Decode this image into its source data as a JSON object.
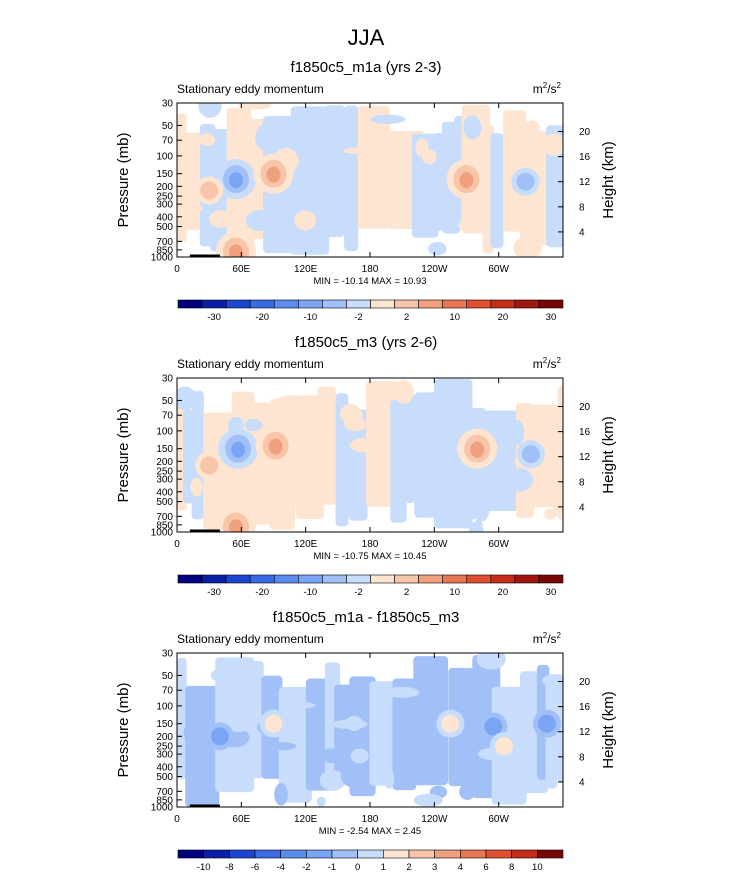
{
  "page_title": "JJA",
  "chart_data": [
    {
      "type": "heatmap",
      "title": "f1850c5_m1a (yrs 2-3)",
      "subtitle": "Stationary eddy momentum",
      "units_prefix": "m",
      "units_suffix": "/s",
      "units_exp": "2",
      "ylabel": "Pressure (mb)",
      "ylabel_right": "Height (km)",
      "pressure_ticks": [
        "30",
        "50",
        "70",
        "100",
        "150",
        "200",
        "250",
        "300",
        "400",
        "500",
        "700",
        "850",
        "1000"
      ],
      "height_ticks": [
        "20",
        "16",
        "12",
        "8",
        "4"
      ],
      "xticks": [
        "0",
        "60E",
        "120E",
        "180",
        "120W",
        "60W"
      ],
      "minmax_text": "MIN = -10.14  MAX = 10.93",
      "min": -10.14,
      "max": 10.93,
      "colorbar_levels": [
        "-30",
        "-20",
        "-10",
        "-2",
        "2",
        "10",
        "20",
        "30"
      ],
      "colorbar_colors": [
        "#00007f",
        "#0a1fa8",
        "#1a46d2",
        "#3a6ae6",
        "#5a8cf0",
        "#7aa5f4",
        "#a0c0f7",
        "#c8dcfb",
        "#fde5d2",
        "#f8c5a8",
        "#f1a07e",
        "#e97653",
        "#df4f30",
        "#c62d17",
        "#a2160e",
        "#780606"
      ],
      "features": [
        {
          "lon": 55,
          "p": 170,
          "value": -8,
          "kind": "neg"
        },
        {
          "lon": 90,
          "p": 150,
          "value": 8,
          "kind": "pos"
        },
        {
          "lon": 270,
          "p": 170,
          "value": 5,
          "kind": "pos"
        },
        {
          "lon": 325,
          "p": 180,
          "value": -4,
          "kind": "neg"
        },
        {
          "lon": 30,
          "p": 220,
          "value": 4,
          "kind": "pos"
        },
        {
          "lon": 55,
          "p": 880,
          "value": 6,
          "kind": "pos"
        }
      ]
    },
    {
      "type": "heatmap",
      "title": "f1850c5_m3 (yrs 2-6)",
      "subtitle": "Stationary eddy momentum",
      "units_prefix": "m",
      "units_suffix": "/s",
      "units_exp": "2",
      "ylabel": "Pressure (mb)",
      "ylabel_right": "Height (km)",
      "pressure_ticks": [
        "30",
        "50",
        "70",
        "100",
        "150",
        "200",
        "250",
        "300",
        "400",
        "500",
        "700",
        "850",
        "1000"
      ],
      "height_ticks": [
        "20",
        "16",
        "12",
        "8",
        "4"
      ],
      "xticks": [
        "0",
        "60E",
        "120E",
        "180",
        "120W",
        "60W"
      ],
      "minmax_text": "MIN = -10.75  MAX = 10.45",
      "min": -10.75,
      "max": 10.45,
      "colorbar_levels": [
        "-30",
        "-20",
        "-10",
        "-2",
        "2",
        "10",
        "20",
        "30"
      ],
      "colorbar_colors": [
        "#00007f",
        "#0a1fa8",
        "#1a46d2",
        "#3a6ae6",
        "#5a8cf0",
        "#7aa5f4",
        "#a0c0f7",
        "#c8dcfb",
        "#fde5d2",
        "#f8c5a8",
        "#f1a07e",
        "#e97653",
        "#df4f30",
        "#c62d17",
        "#a2160e",
        "#780606"
      ],
      "features": [
        {
          "lon": 57,
          "p": 150,
          "value": -9,
          "kind": "neg"
        },
        {
          "lon": 92,
          "p": 140,
          "value": 6,
          "kind": "pos"
        },
        {
          "lon": 280,
          "p": 150,
          "value": 6,
          "kind": "pos"
        },
        {
          "lon": 330,
          "p": 170,
          "value": -3,
          "kind": "neg"
        },
        {
          "lon": 30,
          "p": 220,
          "value": 4,
          "kind": "pos"
        },
        {
          "lon": 55,
          "p": 880,
          "value": 6,
          "kind": "pos"
        }
      ]
    },
    {
      "type": "heatmap",
      "title": "f1850c5_m1a - f1850c5_m3",
      "subtitle": "Stationary eddy momentum",
      "units_prefix": "m",
      "units_suffix": "/s",
      "units_exp": "2",
      "ylabel": "Pressure (mb)",
      "ylabel_right": "Height (km)",
      "pressure_ticks": [
        "30",
        "50",
        "70",
        "100",
        "150",
        "200",
        "250",
        "300",
        "400",
        "500",
        "700",
        "850",
        "1000"
      ],
      "height_ticks": [
        "20",
        "16",
        "12",
        "8",
        "4"
      ],
      "xticks": [
        "0",
        "60E",
        "120E",
        "180",
        "120W",
        "60W"
      ],
      "minmax_text": "MIN =  -2.54  MAX =  2.45",
      "min": -2.54,
      "max": 2.45,
      "colorbar_levels": [
        "-10",
        "-8",
        "-6",
        "-4",
        "-2",
        "-1",
        "0",
        "1",
        "2",
        "3",
        "4",
        "6",
        "8",
        "10"
      ],
      "colorbar_colors": [
        "#00007f",
        "#0a1fa8",
        "#1a46d2",
        "#3a6ae6",
        "#5a8cf0",
        "#7aa5f4",
        "#a0c0f7",
        "#c8dcfb",
        "#fde5d2",
        "#f8c5a8",
        "#f1a07e",
        "#e97653",
        "#df4f30",
        "#c62d17",
        "#780606"
      ],
      "features": [
        {
          "lon": 90,
          "p": 150,
          "value": 2,
          "kind": "pos"
        },
        {
          "lon": 255,
          "p": 150,
          "value": 2,
          "kind": "pos"
        },
        {
          "lon": 295,
          "p": 160,
          "value": -2,
          "kind": "neg"
        },
        {
          "lon": 345,
          "p": 150,
          "value": -2,
          "kind": "neg"
        },
        {
          "lon": 305,
          "p": 250,
          "value": 2,
          "kind": "pos"
        },
        {
          "lon": 40,
          "p": 200,
          "value": -1,
          "kind": "neg"
        }
      ]
    }
  ]
}
